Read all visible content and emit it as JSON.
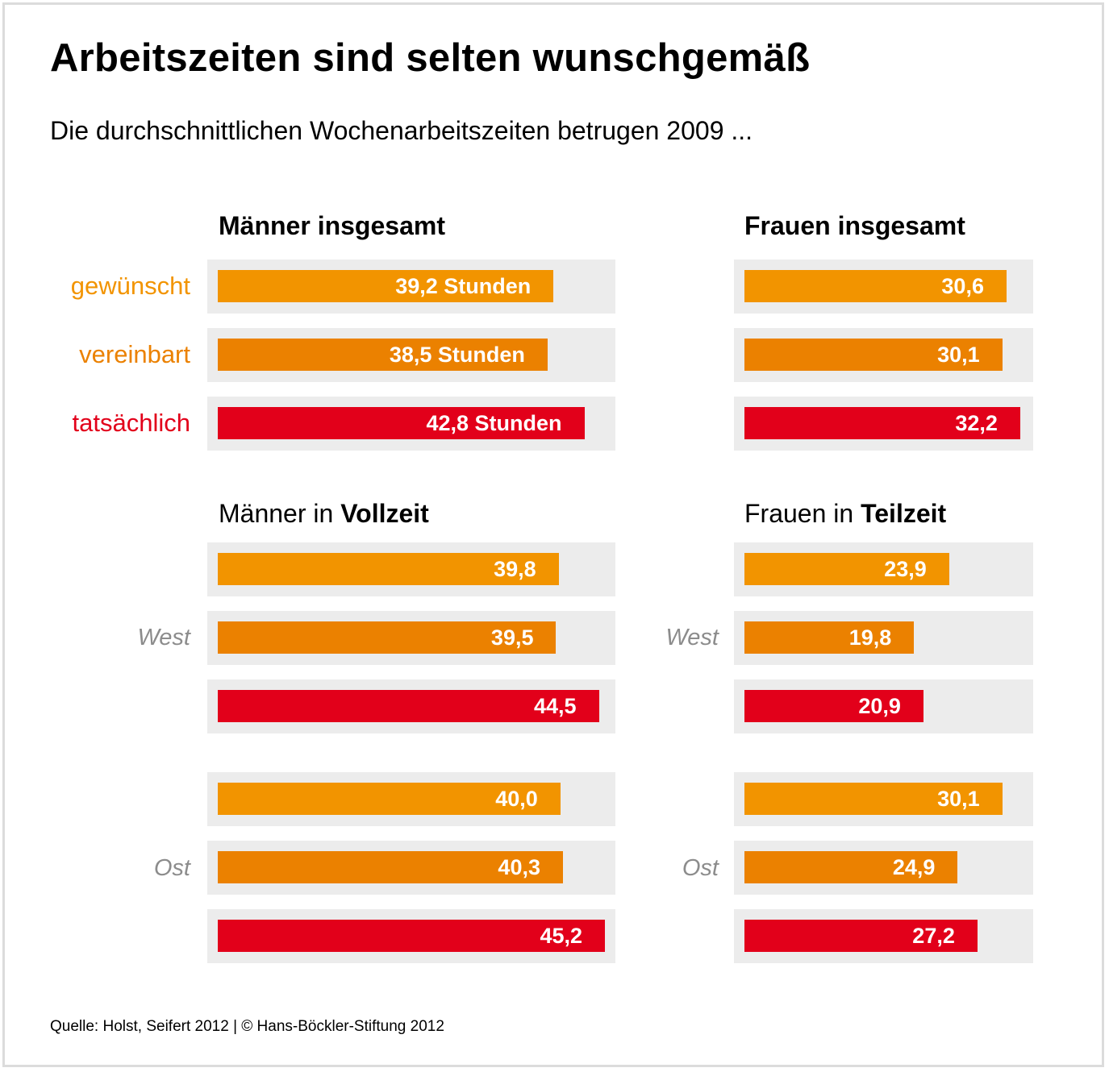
{
  "title": "Arbeitszeiten sind selten wunschgemäß",
  "subtitle": "Die durchschnittlichen Wochenarbeitszeiten betrugen 2009 ...",
  "source": "Quelle: Holst, Seifert 2012 | © Hans-Böckler-Stiftung 2012",
  "row_labels": [
    "gewünscht",
    "vereinbart",
    "tatsächlich"
  ],
  "group_labels": [
    "West",
    "Ost"
  ],
  "colors": {
    "gewuenscht": "#f29400",
    "vereinbart": "#eb8100",
    "tatsaechlich": "#e2001a",
    "track": "#ececec",
    "group_label": "#8c8c8c"
  },
  "panels": {
    "maenner_insgesamt": {
      "title_bold": "Männer insgesamt"
    },
    "frauen_insgesamt": {
      "title_bold": "Frauen insgesamt"
    },
    "maenner_vollzeit": {
      "title_normal": "Männer in ",
      "title_bold": "Vollzeit"
    },
    "frauen_teilzeit": {
      "title_normal": "Frauen in ",
      "title_bold": "Teilzeit"
    }
  },
  "chart_data": [
    {
      "type": "bar",
      "title": "Männer insgesamt",
      "categories": [
        "gewünscht",
        "vereinbart",
        "tatsächlich"
      ],
      "values": [
        39.2,
        38.5,
        42.8
      ],
      "labels": [
        "39,2 Stunden",
        "38,5 Stunden",
        "42,8 Stunden"
      ]
    },
    {
      "type": "bar",
      "title": "Frauen insgesamt",
      "categories": [
        "gewünscht",
        "vereinbart",
        "tatsächlich"
      ],
      "values": [
        30.6,
        30.1,
        32.2
      ],
      "labels": [
        "30,6",
        "30,1",
        "32,2"
      ]
    },
    {
      "type": "bar",
      "title": "Männer in Vollzeit",
      "categories": [
        "gewünscht",
        "vereinbart",
        "tatsächlich"
      ],
      "series": [
        {
          "name": "West",
          "values": [
            39.8,
            39.5,
            44.5
          ],
          "labels": [
            "39,8",
            "39,5",
            "44,5"
          ]
        },
        {
          "name": "Ost",
          "values": [
            40.0,
            40.3,
            45.2
          ],
          "labels": [
            "40,0",
            "40,3",
            "45,2"
          ]
        }
      ]
    },
    {
      "type": "bar",
      "title": "Frauen in Teilzeit",
      "categories": [
        "gewünscht",
        "vereinbart",
        "tatsächlich"
      ],
      "series": [
        {
          "name": "West",
          "values": [
            23.9,
            19.8,
            20.9
          ],
          "labels": [
            "23,9",
            "19,8",
            "20,9"
          ]
        },
        {
          "name": "Ost",
          "values": [
            30.1,
            24.9,
            27.2
          ],
          "labels": [
            "30,1",
            "24,9",
            "27,2"
          ]
        }
      ]
    }
  ]
}
